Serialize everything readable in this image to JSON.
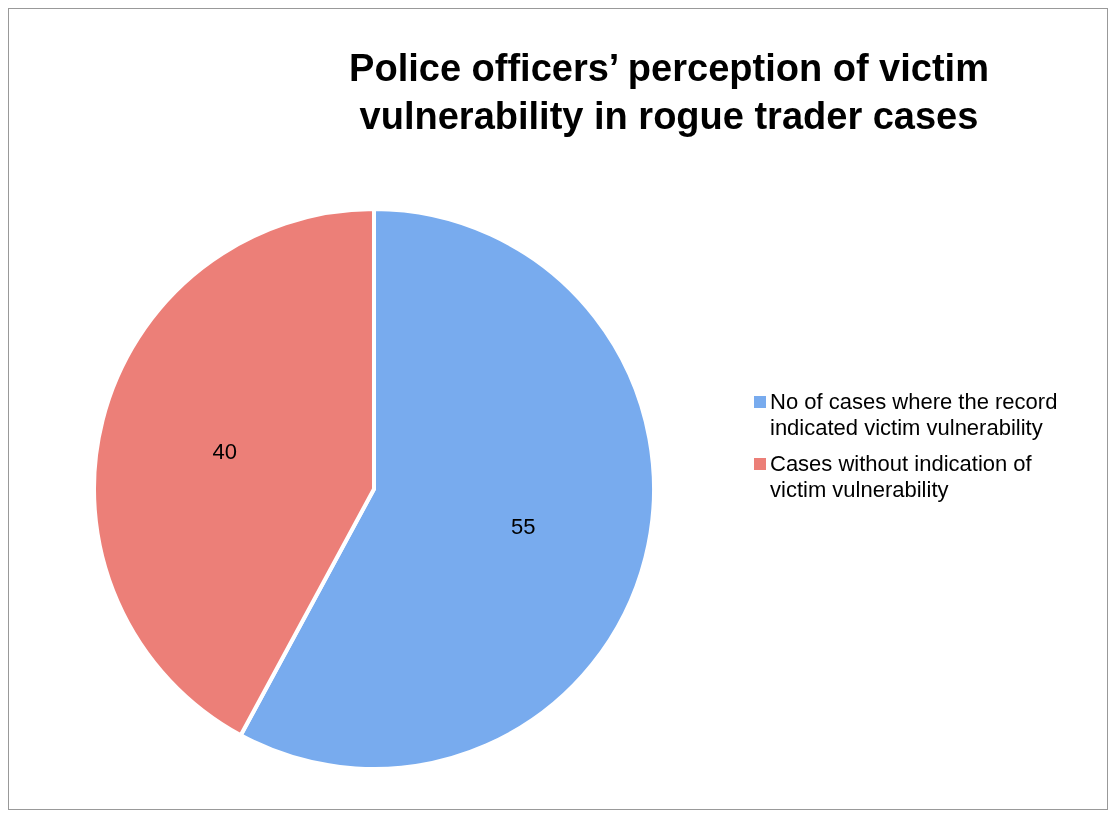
{
  "chart_data": {
    "type": "pie",
    "title": "Police officers’ perception of victim vulnerability in rogue trader cases",
    "categories": [
      "No of cases where the record indicated victim vulnerability",
      "Cases without indication of victim vulnerability"
    ],
    "values": [
      55,
      40
    ],
    "colors": [
      "#78abee",
      "#ec7f78"
    ],
    "data_labels": true,
    "legend": "right"
  }
}
